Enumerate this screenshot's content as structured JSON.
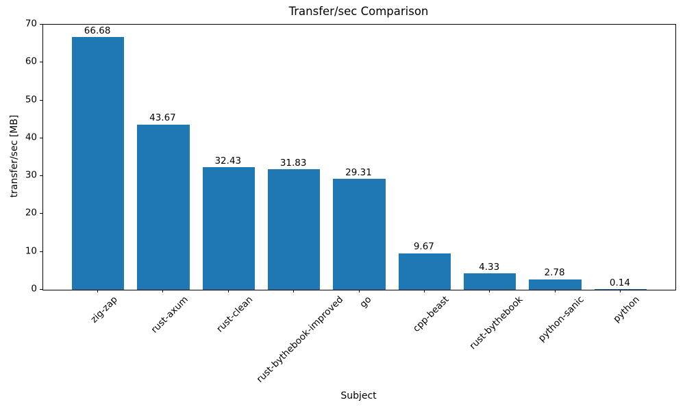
{
  "chart_data": {
    "type": "bar",
    "title": "Transfer/sec Comparison",
    "xlabel": "Subject",
    "ylabel": "transfer/sec [MB]",
    "categories": [
      "zig-zap",
      "rust-axum",
      "rust-clean",
      "rust-bythebook-improved",
      "go",
      "cpp-beast",
      "rust-bythebook",
      "python-sanic",
      "python"
    ],
    "values": [
      66.68,
      43.67,
      32.43,
      31.83,
      29.31,
      9.67,
      4.33,
      2.78,
      0.14
    ],
    "bar_value_labels": [
      "66.68",
      "43.67",
      "32.43",
      "31.83",
      "29.31",
      "9.67",
      "4.33",
      "2.78",
      "0.14"
    ],
    "ylim": [
      0,
      70
    ],
    "yticks": [
      0,
      10,
      20,
      30,
      40,
      50,
      60,
      70
    ],
    "bar_color": "#1f77b4",
    "text_color": "#000000",
    "xtick_rotation_deg": 45,
    "bar_width_fraction": 0.8,
    "grid": false,
    "legend": null
  }
}
